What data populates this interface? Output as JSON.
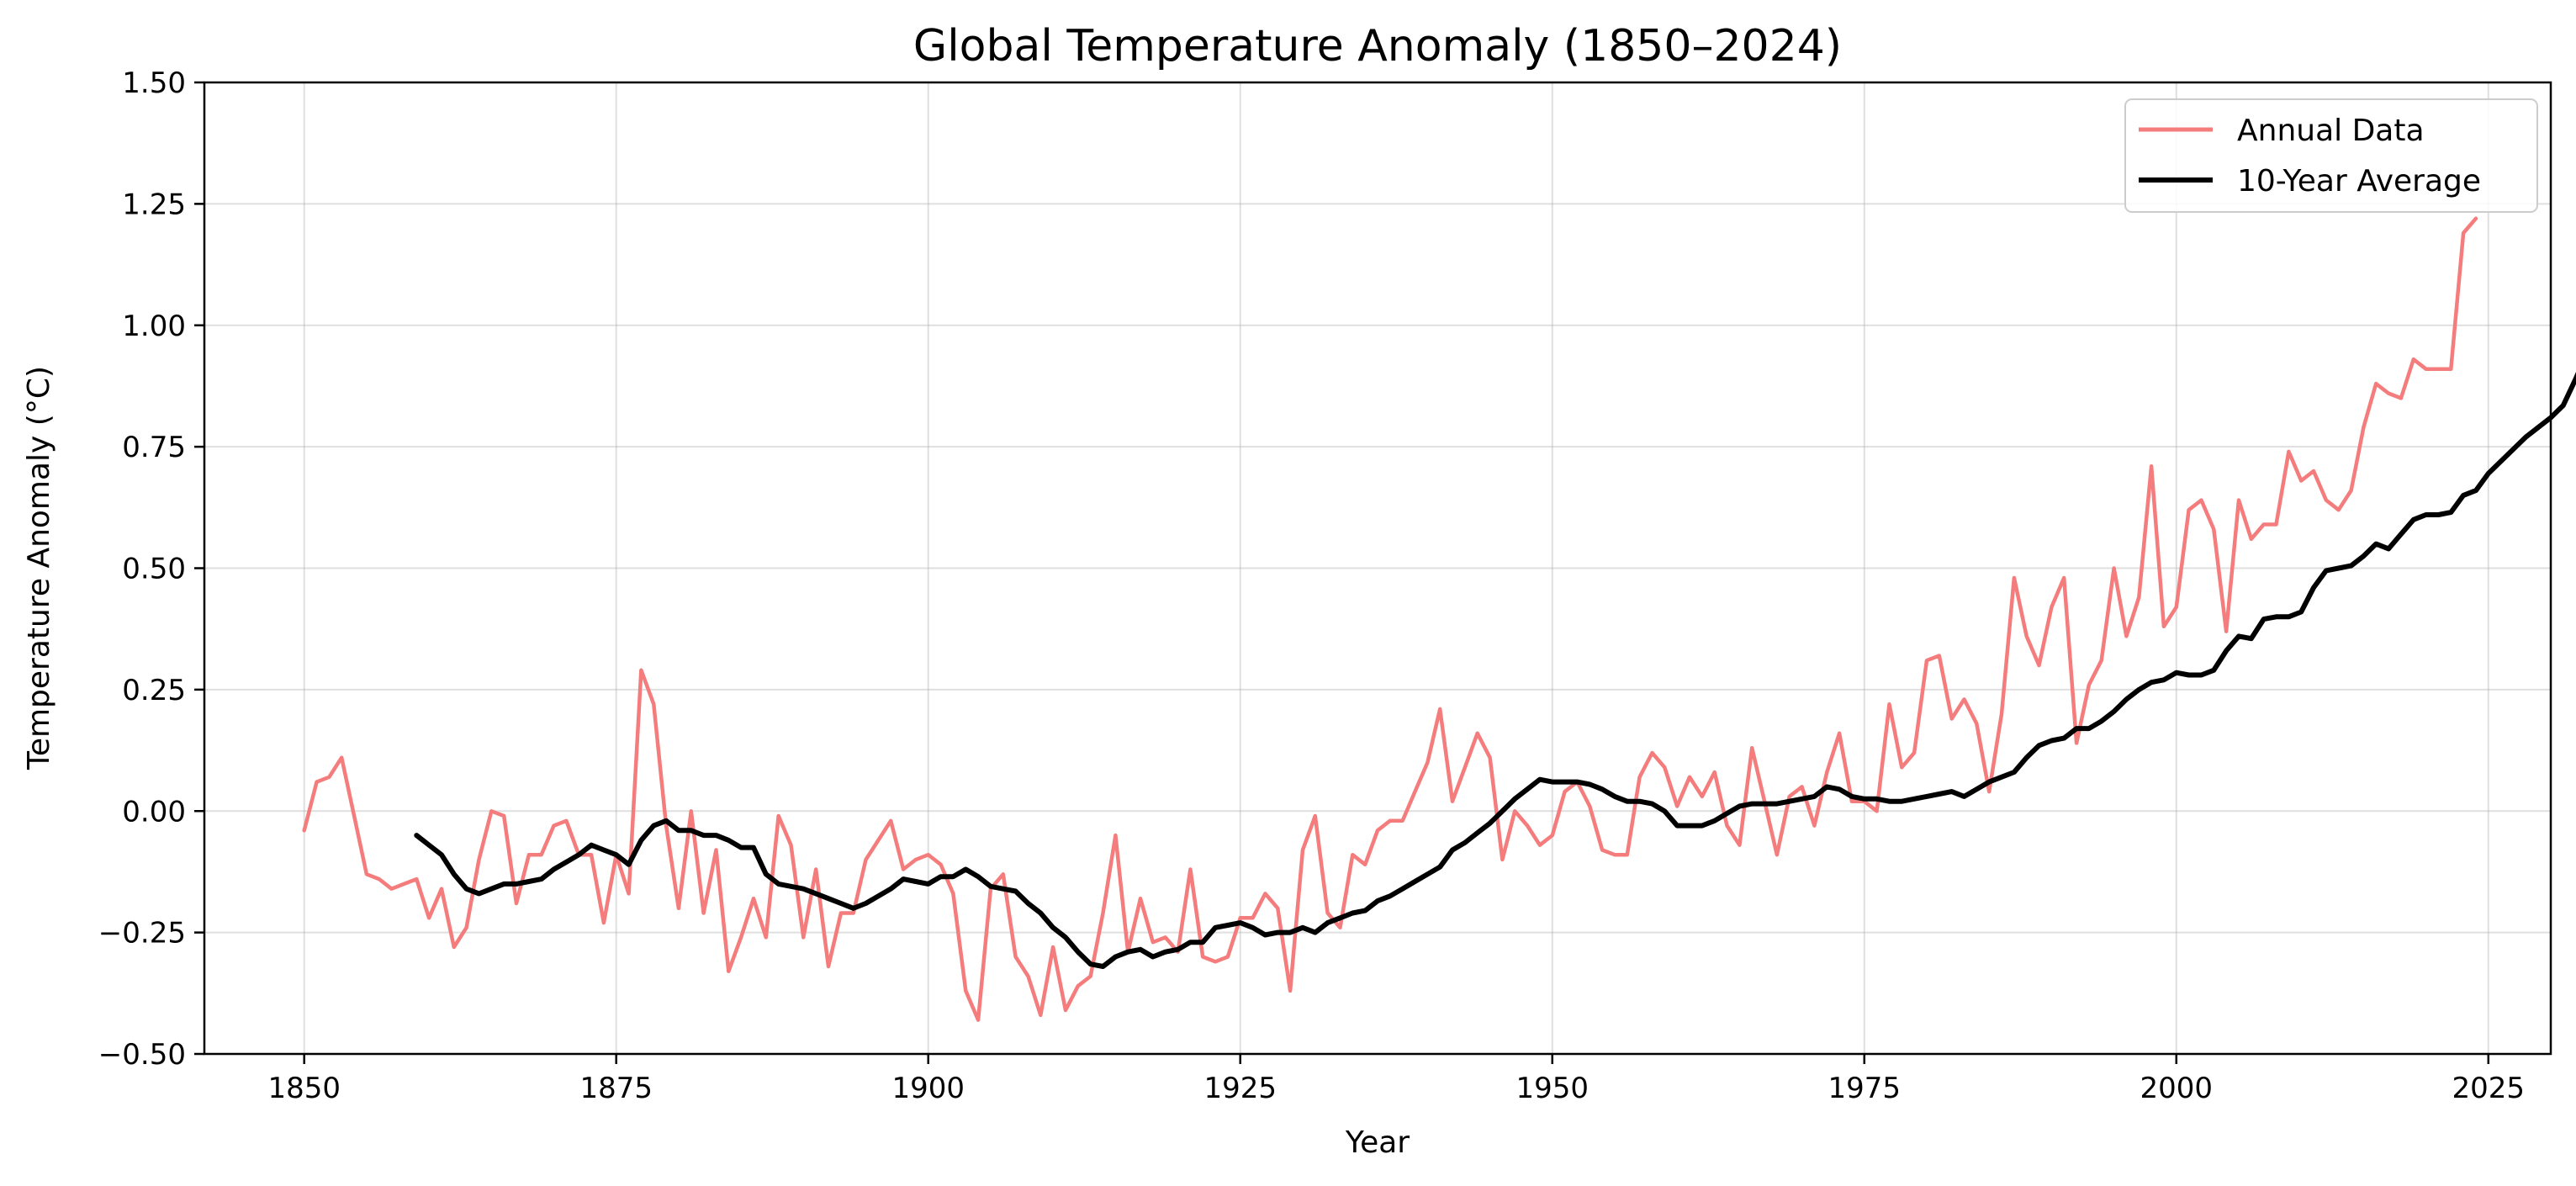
{
  "chart_data": {
    "type": "line",
    "title": "Global Temperature Anomaly (1850–2024)",
    "xlabel": "Year",
    "ylabel": "Temperature Anomaly (°C)",
    "xlim": [
      1842,
      2030
    ],
    "ylim": [
      -0.5,
      1.5
    ],
    "xticks": [
      1850,
      1875,
      1900,
      1925,
      1950,
      1975,
      2000,
      2025
    ],
    "xtick_labels": [
      "1850",
      "1875",
      "1900",
      "1925",
      "1950",
      "1975",
      "2000",
      "2025"
    ],
    "yticks": [
      -0.5,
      -0.25,
      0.0,
      0.25,
      0.5,
      0.75,
      1.0,
      1.25,
      1.5
    ],
    "ytick_labels": [
      "−0.50",
      "−0.25",
      "0.00",
      "0.25",
      "0.50",
      "0.75",
      "1.00",
      "1.25",
      "1.50"
    ],
    "grid": true,
    "legend_position": "top-right",
    "series": [
      {
        "name": "Annual Data",
        "color": "#f47c7c",
        "x_start": 1850,
        "values": [
          -0.04,
          0.06,
          0.07,
          0.11,
          -0.01,
          -0.13,
          -0.14,
          -0.16,
          -0.15,
          -0.14,
          -0.22,
          -0.16,
          -0.28,
          -0.24,
          -0.1,
          0.0,
          -0.01,
          -0.19,
          -0.09,
          -0.09,
          -0.03,
          -0.02,
          -0.09,
          -0.09,
          -0.23,
          -0.09,
          -0.17,
          0.29,
          0.22,
          -0.03,
          -0.2,
          0.0,
          -0.21,
          -0.08,
          -0.33,
          -0.26,
          -0.18,
          -0.26,
          -0.01,
          -0.07,
          -0.26,
          -0.12,
          -0.32,
          -0.21,
          -0.21,
          -0.1,
          -0.06,
          -0.02,
          -0.12,
          -0.1,
          -0.09,
          -0.11,
          -0.17,
          -0.37,
          -0.43,
          -0.16,
          -0.13,
          -0.3,
          -0.34,
          -0.42,
          -0.28,
          -0.41,
          -0.36,
          -0.34,
          -0.21,
          -0.05,
          -0.29,
          -0.18,
          -0.27,
          -0.26,
          -0.29,
          -0.12,
          -0.3,
          -0.31,
          -0.3,
          -0.22,
          -0.22,
          -0.17,
          -0.2,
          -0.37,
          -0.08,
          -0.01,
          -0.21,
          -0.24,
          -0.09,
          -0.11,
          -0.04,
          -0.02,
          -0.02,
          0.04,
          0.1,
          0.21,
          0.02,
          0.09,
          0.16,
          0.11,
          -0.1,
          0.0,
          -0.03,
          -0.07,
          -0.05,
          0.04,
          0.06,
          0.01,
          -0.08,
          -0.09,
          -0.09,
          0.07,
          0.12,
          0.09,
          0.01,
          0.07,
          0.03,
          0.08,
          -0.03,
          -0.07,
          0.13,
          0.02,
          -0.09,
          0.03,
          0.05,
          -0.03,
          0.08,
          0.16,
          0.02,
          0.02,
          0.0,
          0.22,
          0.09,
          0.12,
          0.31,
          0.32,
          0.19,
          0.23,
          0.18,
          0.04,
          0.2,
          0.48,
          0.36,
          0.3,
          0.42,
          0.48,
          0.14,
          0.26,
          0.31,
          0.5,
          0.36,
          0.44,
          0.71,
          0.38,
          0.42,
          0.62,
          0.64,
          0.58,
          0.37,
          0.64,
          0.56,
          0.59,
          0.59,
          0.74,
          0.68,
          0.7,
          0.64,
          0.62,
          0.66,
          0.79,
          0.88,
          0.86,
          0.85,
          0.93,
          0.91,
          0.91,
          0.91,
          1.19,
          1.22
        ]
      },
      {
        "name": "10-Year Average",
        "color": "#000000",
        "x_start": 1859,
        "values": [
          -0.05,
          -0.07,
          -0.09,
          -0.13,
          -0.16,
          -0.17,
          -0.16,
          -0.15,
          -0.15,
          -0.145,
          -0.14,
          -0.12,
          -0.105,
          -0.09,
          -0.07,
          -0.08,
          -0.09,
          -0.11,
          -0.06,
          -0.03,
          -0.02,
          -0.04,
          -0.04,
          -0.05,
          -0.05,
          -0.06,
          -0.075,
          -0.075,
          -0.13,
          -0.15,
          -0.155,
          -0.16,
          -0.17,
          -0.18,
          -0.19,
          -0.2,
          -0.19,
          -0.175,
          -0.16,
          -0.14,
          -0.145,
          -0.15,
          -0.135,
          -0.135,
          -0.12,
          -0.135,
          -0.155,
          -0.16,
          -0.165,
          -0.19,
          -0.21,
          -0.24,
          -0.26,
          -0.29,
          -0.315,
          -0.32,
          -0.3,
          -0.29,
          -0.285,
          -0.3,
          -0.29,
          -0.285,
          -0.27,
          -0.27,
          -0.24,
          -0.235,
          -0.23,
          -0.24,
          -0.255,
          -0.25,
          -0.25,
          -0.24,
          -0.25,
          -0.23,
          -0.22,
          -0.21,
          -0.205,
          -0.185,
          -0.175,
          -0.16,
          -0.145,
          -0.13,
          -0.115,
          -0.08,
          -0.065,
          -0.045,
          -0.025,
          0.0,
          0.025,
          0.045,
          0.065,
          0.06,
          0.06,
          0.06,
          0.055,
          0.045,
          0.03,
          0.02,
          0.02,
          0.015,
          0.0,
          -0.03,
          -0.03,
          -0.03,
          -0.02,
          -0.005,
          0.01,
          0.015,
          0.015,
          0.015,
          0.02,
          0.025,
          0.03,
          0.05,
          0.045,
          0.03,
          0.025,
          0.025,
          0.02,
          0.02,
          0.025,
          0.03,
          0.035,
          0.04,
          0.03,
          0.045,
          0.06,
          0.07,
          0.08,
          0.11,
          0.135,
          0.145,
          0.15,
          0.17,
          0.17,
          0.185,
          0.205,
          0.23,
          0.25,
          0.265,
          0.27,
          0.285,
          0.28,
          0.28,
          0.29,
          0.33,
          0.36,
          0.355,
          0.395,
          0.4,
          0.4,
          0.41,
          0.46,
          0.495,
          0.5,
          0.505,
          0.525,
          0.55,
          0.54,
          0.57,
          0.6,
          0.61,
          0.61,
          0.615,
          0.65,
          0.66,
          0.695,
          0.72,
          0.745,
          0.77,
          0.79,
          0.81,
          0.835,
          0.89,
          0.95
        ]
      }
    ]
  }
}
